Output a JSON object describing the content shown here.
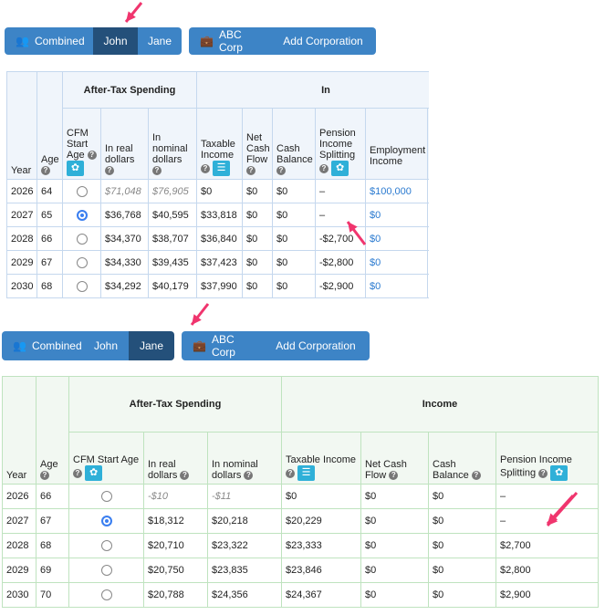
{
  "top": {
    "buttons": {
      "combined": "Combined",
      "john": "John",
      "jane": "Jane",
      "corp": "ABC Corp",
      "add_corp": "Add Corporation"
    },
    "active": "John",
    "headers": {
      "year": "Year",
      "age": "Age",
      "spending": "After-Tax Spending",
      "income": "In",
      "cfm": "CFM Start Age",
      "real": "In real dollars",
      "nominal": "In nominal dollars",
      "taxable": "Taxable Income",
      "netcash": "Net Cash Flow",
      "cashbal": "Cash Balance",
      "pension": "Pension Income Splitting",
      "employment": "Employment Income"
    },
    "rows": [
      {
        "year": "2026",
        "age": "64",
        "cfm": false,
        "real": "$71,048",
        "nominal": "$76,905",
        "taxable": "$0",
        "netcash": "$0",
        "cashbal": "$0",
        "pension": "–",
        "employment": "$100,000"
      },
      {
        "year": "2027",
        "age": "65",
        "cfm": true,
        "real": "$36,768",
        "nominal": "$40,595",
        "taxable": "$33,818",
        "netcash": "$0",
        "cashbal": "$0",
        "pension": "–",
        "employment": "$0"
      },
      {
        "year": "2028",
        "age": "66",
        "cfm": false,
        "real": "$34,370",
        "nominal": "$38,707",
        "taxable": "$36,840",
        "netcash": "$0",
        "cashbal": "$0",
        "pension": "-$2,700",
        "employment": "$0"
      },
      {
        "year": "2029",
        "age": "67",
        "cfm": false,
        "real": "$34,330",
        "nominal": "$39,435",
        "taxable": "$37,423",
        "netcash": "$0",
        "cashbal": "$0",
        "pension": "-$2,800",
        "employment": "$0"
      },
      {
        "year": "2030",
        "age": "68",
        "cfm": false,
        "real": "$34,292",
        "nominal": "$40,179",
        "taxable": "$37,990",
        "netcash": "$0",
        "cashbal": "$0",
        "pension": "-$2,900",
        "employment": "$0"
      }
    ]
  },
  "bottom": {
    "buttons": {
      "combined": "Combined",
      "john": "John",
      "jane": "Jane",
      "corp": "ABC Corp",
      "add_corp": "Add Corporation"
    },
    "active": "Jane",
    "headers": {
      "year": "Year",
      "age": "Age",
      "spending": "After-Tax Spending",
      "income": "Income",
      "cfm": "CFM Start Age",
      "real": "In real dollars",
      "nominal": "In nominal dollars",
      "taxable": "Taxable Income",
      "netcash": "Net Cash Flow",
      "cashbal": "Cash Balance",
      "pension": "Pension Income Splitting"
    },
    "rows": [
      {
        "year": "2026",
        "age": "66",
        "cfm": false,
        "real": "-$10",
        "nominal": "-$11",
        "taxable": "$0",
        "netcash": "$0",
        "cashbal": "$0",
        "pension": "–"
      },
      {
        "year": "2027",
        "age": "67",
        "cfm": true,
        "real": "$18,312",
        "nominal": "$20,218",
        "taxable": "$20,229",
        "netcash": "$0",
        "cashbal": "$0",
        "pension": "–"
      },
      {
        "year": "2028",
        "age": "68",
        "cfm": false,
        "real": "$20,710",
        "nominal": "$23,322",
        "taxable": "$23,333",
        "netcash": "$0",
        "cashbal": "$0",
        "pension": "$2,700"
      },
      {
        "year": "2029",
        "age": "69",
        "cfm": false,
        "real": "$20,750",
        "nominal": "$23,835",
        "taxable": "$23,846",
        "netcash": "$0",
        "cashbal": "$0",
        "pension": "$2,800"
      },
      {
        "year": "2030",
        "age": "70",
        "cfm": false,
        "real": "$20,788",
        "nominal": "$24,356",
        "taxable": "$24,367",
        "netcash": "$0",
        "cashbal": "$0",
        "pension": "$2,900"
      }
    ]
  },
  "colors": {
    "button": "#3d84c6",
    "button_active": "#24507a",
    "annotation_arrow": "#f0356e",
    "link": "#2a7ad0"
  }
}
